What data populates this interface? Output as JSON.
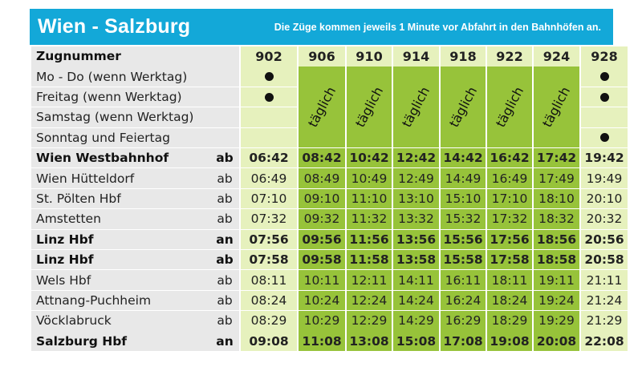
{
  "header": {
    "title": "Wien - Salzburg",
    "note": "Die Züge kommen jeweils 1 Minute vor Abfahrt in den Bahnhöfen an."
  },
  "trains_label": "Zugnummer",
  "trains": [
    "902",
    "906",
    "910",
    "914",
    "918",
    "922",
    "924",
    "928"
  ],
  "day_rows": [
    {
      "label": "Mo - Do (wenn Werktag)",
      "dots": [
        true,
        false,
        false,
        false,
        false,
        false,
        false,
        true
      ]
    },
    {
      "label": "Freitag (wenn Werktag)",
      "dots": [
        true,
        false,
        false,
        false,
        false,
        false,
        false,
        true
      ]
    },
    {
      "label": "Samstag (wenn Werktag)",
      "dots": [
        false,
        false,
        false,
        false,
        false,
        false,
        false,
        false
      ]
    },
    {
      "label": "Sonntag und Feiertag",
      "dots": [
        false,
        false,
        false,
        false,
        false,
        false,
        false,
        true
      ]
    }
  ],
  "daily_label": "täglich",
  "daily_trains": [
    1,
    2,
    3,
    4,
    5,
    6
  ],
  "stations": [
    {
      "name": "Wien Westbahnhof",
      "type": "ab",
      "bold": true,
      "times": [
        "06:42",
        "08:42",
        "10:42",
        "12:42",
        "14:42",
        "16:42",
        "17:42",
        "19:42"
      ]
    },
    {
      "name": "Wien Hütteldorf",
      "type": "ab",
      "bold": false,
      "times": [
        "06:49",
        "08:49",
        "10:49",
        "12:49",
        "14:49",
        "16:49",
        "17:49",
        "19:49"
      ]
    },
    {
      "name": "St. Pölten Hbf",
      "type": "ab",
      "bold": false,
      "times": [
        "07:10",
        "09:10",
        "11:10",
        "13:10",
        "15:10",
        "17:10",
        "18:10",
        "20:10"
      ]
    },
    {
      "name": "Amstetten",
      "type": "ab",
      "bold": false,
      "times": [
        "07:32",
        "09:32",
        "11:32",
        "13:32",
        "15:32",
        "17:32",
        "18:32",
        "20:32"
      ]
    },
    {
      "name": "Linz Hbf",
      "type": "an",
      "bold": true,
      "times": [
        "07:56",
        "09:56",
        "11:56",
        "13:56",
        "15:56",
        "17:56",
        "18:56",
        "20:56"
      ]
    },
    {
      "name": "Linz Hbf",
      "type": "ab",
      "bold": true,
      "times": [
        "07:58",
        "09:58",
        "11:58",
        "13:58",
        "15:58",
        "17:58",
        "18:58",
        "20:58"
      ]
    },
    {
      "name": "Wels Hbf",
      "type": "ab",
      "bold": false,
      "times": [
        "08:11",
        "10:11",
        "12:11",
        "14:11",
        "16:11",
        "18:11",
        "19:11",
        "21:11"
      ]
    },
    {
      "name": "Attnang-Puchheim",
      "type": "ab",
      "bold": false,
      "times": [
        "08:24",
        "10:24",
        "12:24",
        "14:24",
        "16:24",
        "18:24",
        "19:24",
        "21:24"
      ]
    },
    {
      "name": "Vöcklabruck",
      "type": "ab",
      "bold": false,
      "times": [
        "08:29",
        "10:29",
        "12:29",
        "14:29",
        "16:29",
        "18:29",
        "19:29",
        "21:29"
      ]
    },
    {
      "name": "Salzburg Hbf",
      "type": "an",
      "bold": true,
      "times": [
        "09:08",
        "11:08",
        "13:08",
        "15:08",
        "17:08",
        "19:08",
        "20:08",
        "22:08"
      ]
    }
  ],
  "colors": {
    "header": "#13a8d8",
    "green": "#97c33a",
    "pale_green": "#e6f1bd",
    "label_bg": "#e8e8e8"
  }
}
